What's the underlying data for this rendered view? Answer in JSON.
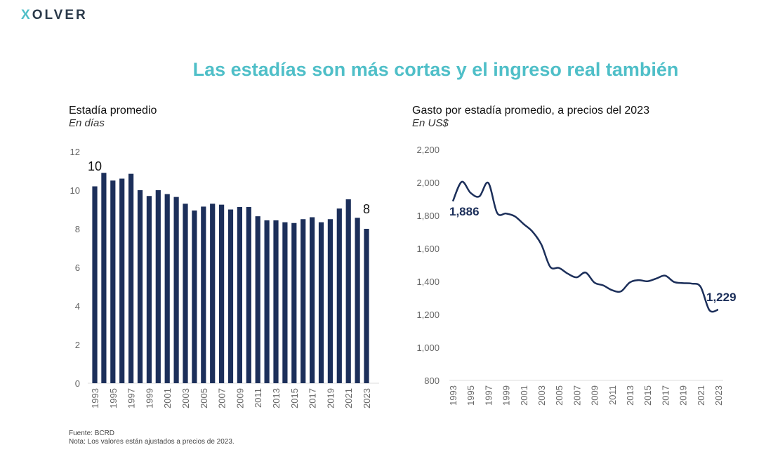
{
  "header": {
    "logo": "XOLVER",
    "title": "Las estadías son más cortas y el ingreso real también"
  },
  "colors": {
    "accent": "#4fbfc8",
    "series": "#1c2f5a"
  },
  "footer": {
    "source": "Fuente: BCRD",
    "note": "Nota: Los valores están ajustados a precios de 2023."
  },
  "chart_data": [
    {
      "type": "bar",
      "title": "Estadía promedio",
      "subtitle": "En días",
      "ylim": [
        0,
        12
      ],
      "yticks": [
        0,
        2,
        4,
        6,
        8,
        10,
        12
      ],
      "categories": [
        1993,
        1994,
        1995,
        1996,
        1997,
        1998,
        1999,
        2000,
        2001,
        2002,
        2003,
        2004,
        2005,
        2006,
        2007,
        2008,
        2009,
        2010,
        2011,
        2012,
        2013,
        2014,
        2015,
        2016,
        2017,
        2018,
        2019,
        2020,
        2021,
        2022,
        2023
      ],
      "values": [
        10.2,
        10.9,
        10.5,
        10.6,
        10.85,
        10.0,
        9.7,
        10.0,
        9.8,
        9.65,
        9.3,
        8.95,
        9.15,
        9.3,
        9.25,
        9.0,
        9.13,
        9.13,
        8.65,
        8.44,
        8.44,
        8.34,
        8.3,
        8.5,
        8.6,
        8.34,
        8.5,
        9.05,
        9.53,
        8.57,
        8.0
      ],
      "annotations": [
        {
          "year": 1993,
          "label": "10"
        },
        {
          "year": 2023,
          "label": "8"
        }
      ]
    },
    {
      "type": "line",
      "title": "Gasto por estadía promedio, a precios del 2023",
      "subtitle": "En US$",
      "ylim": [
        800,
        2200
      ],
      "yticks": [
        "800",
        "1,000",
        "1,200",
        "1,400",
        "1,600",
        "1,800",
        "2,000",
        "2,200"
      ],
      "x": [
        1993,
        1994,
        1995,
        1996,
        1997,
        1998,
        1999,
        2000,
        2001,
        2002,
        2003,
        2004,
        2005,
        2006,
        2007,
        2008,
        2009,
        2010,
        2011,
        2012,
        2013,
        2014,
        2015,
        2016,
        2017,
        2018,
        2019,
        2020,
        2021,
        2022,
        2023
      ],
      "values": [
        1886,
        2004,
        1937,
        1916,
        1998,
        1816,
        1812,
        1795,
        1748,
        1702,
        1624,
        1489,
        1482,
        1447,
        1425,
        1454,
        1393,
        1376,
        1347,
        1340,
        1394,
        1408,
        1401,
        1418,
        1435,
        1397,
        1390,
        1387,
        1368,
        1226,
        1229
      ],
      "annotations": [
        {
          "year": 1993,
          "label": "1,886"
        },
        {
          "year": 2023,
          "label": "1,229"
        }
      ]
    }
  ]
}
